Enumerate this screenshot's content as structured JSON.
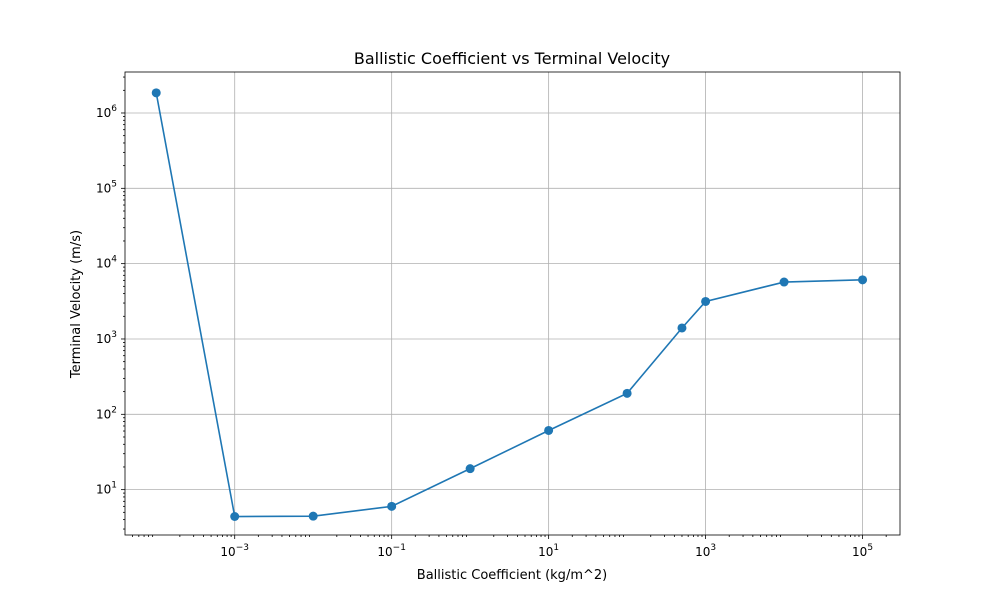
{
  "chart_data": {
    "type": "line",
    "title": "Ballistic Coefficient vs Terminal Velocity",
    "xlabel": "Ballistic Coefficient (kg/m^2)",
    "ylabel": "Terminal Velocity (m/s)",
    "xscale": "log",
    "yscale": "log",
    "xlim": [
      4e-05,
      300000
    ],
    "ylim": [
      2.5,
      3500000
    ],
    "grid": true,
    "x_ticks": [
      {
        "base": "10",
        "exp": "−3",
        "value": 0.001
      },
      {
        "base": "10",
        "exp": "−1",
        "value": 0.1
      },
      {
        "base": "10",
        "exp": "1",
        "value": 10
      },
      {
        "base": "10",
        "exp": "3",
        "value": 1000
      },
      {
        "base": "10",
        "exp": "5",
        "value": 100000
      }
    ],
    "y_ticks": [
      {
        "base": "10",
        "exp": "1",
        "value": 10
      },
      {
        "base": "10",
        "exp": "2",
        "value": 100
      },
      {
        "base": "10",
        "exp": "3",
        "value": 1000
      },
      {
        "base": "10",
        "exp": "4",
        "value": 10000
      },
      {
        "base": "10",
        "exp": "5",
        "value": 100000
      },
      {
        "base": "10",
        "exp": "6",
        "value": 1000000
      }
    ],
    "color": "#1f77b4",
    "series": [
      {
        "x": [
          0.0001,
          0.001,
          0.01,
          0.1,
          1,
          10,
          100,
          500,
          1000,
          10000,
          100000
        ],
        "y": [
          1850000,
          4.4,
          4.45,
          6.0,
          19,
          61,
          190,
          1400,
          3150,
          5700,
          6100
        ]
      }
    ]
  }
}
